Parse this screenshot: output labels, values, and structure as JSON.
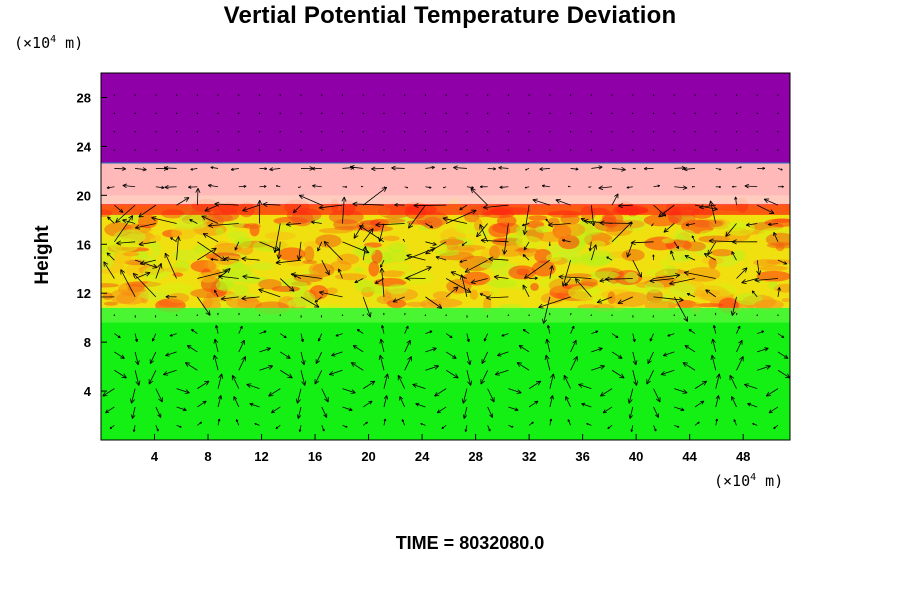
{
  "chart_data": {
    "type": "heatmap",
    "title": "Vertial Potential Temperature Deviation",
    "ylabel": "Height",
    "y_unit_prefix": "(×10",
    "y_unit_exp": "4",
    "y_unit_suffix": " m)",
    "x_unit_prefix": "(×10",
    "x_unit_exp": "4",
    "x_unit_suffix": " m)",
    "xlim": [
      0,
      51.5
    ],
    "ylim": [
      0,
      30
    ],
    "x_ticks": [
      4,
      8,
      12,
      16,
      20,
      24,
      28,
      32,
      36,
      40,
      44,
      48
    ],
    "y_ticks": [
      4,
      8,
      12,
      16,
      20,
      24,
      28
    ],
    "layers": [
      {
        "from": 0,
        "to": 10.8,
        "color": "#14f014"
      },
      {
        "from": 10.8,
        "to": 19.2,
        "color": "#f0e010"
      },
      {
        "from": 19.2,
        "to": 22.6,
        "color": "#ffb9b9"
      },
      {
        "from": 22.6,
        "to": 30,
        "color": "#9000a8"
      }
    ],
    "overlay": "velocity vectors",
    "footer": "TIME = 8032080.0"
  }
}
